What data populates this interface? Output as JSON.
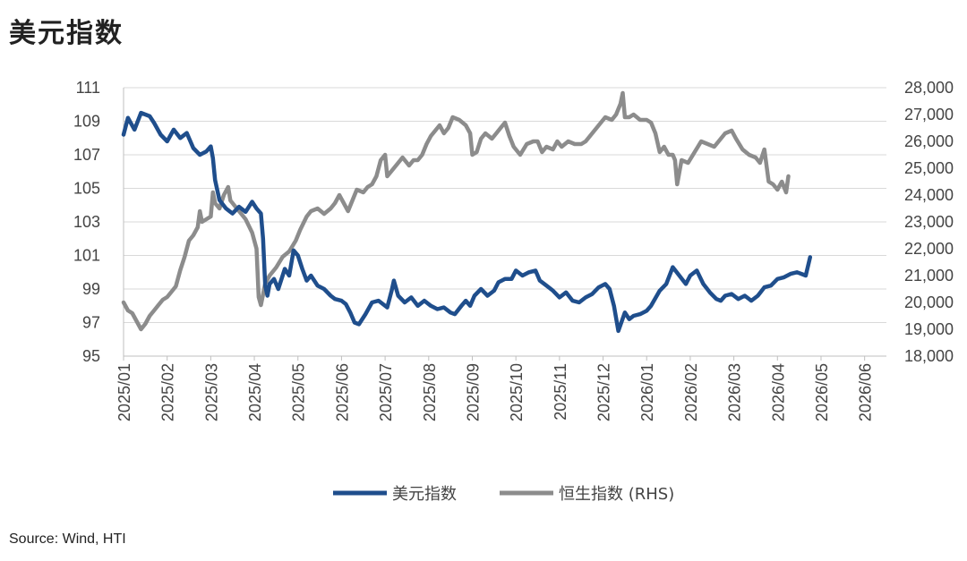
{
  "page": {
    "title": "美元指数",
    "source": "Source: Wind, HTI"
  },
  "colors": {
    "usd": "#1f4e8c",
    "hsi": "#8c8c8c",
    "grid": "#d9d9d9",
    "axis": "#bfbfbf"
  },
  "chart_data": {
    "type": "line",
    "title": "美元指数",
    "x_tick_labels": [
      "2025/01",
      "2025/02",
      "2025/03",
      "2025/04",
      "2025/05",
      "2025/06",
      "2025/07",
      "2025/08",
      "2025/09",
      "2025/10",
      "2025/11",
      "2025/12",
      "2026/01",
      "2026/02",
      "2026/03",
      "2026/04",
      "2026/05",
      "2026/06"
    ],
    "y_left": {
      "min": 95,
      "max": 111,
      "ticks": [
        "95",
        "97",
        "99",
        "101",
        "103",
        "105",
        "107",
        "109",
        "111"
      ]
    },
    "y_right": {
      "min": 18000,
      "max": 28000,
      "ticks": [
        "18,000",
        "19,000",
        "20,000",
        "21,000",
        "22,000",
        "23,000",
        "24,000",
        "25,000",
        "26,000",
        "27,000",
        "28,000"
      ]
    },
    "grid": true,
    "legend_position": "bottom",
    "x_unit": "month index (0 = 2025/01)",
    "series": [
      {
        "name": "美元指数",
        "axis": "left",
        "points": [
          [
            0,
            108.2
          ],
          [
            0.1,
            109.2
          ],
          [
            0.25,
            108.5
          ],
          [
            0.4,
            109.5
          ],
          [
            0.6,
            109.3
          ],
          [
            0.7,
            108.9
          ],
          [
            0.85,
            108.2
          ],
          [
            1.0,
            107.8
          ],
          [
            1.15,
            108.5
          ],
          [
            1.3,
            108.0
          ],
          [
            1.45,
            108.3
          ],
          [
            1.6,
            107.4
          ],
          [
            1.75,
            107.0
          ],
          [
            1.9,
            107.2
          ],
          [
            2.0,
            107.5
          ],
          [
            2.05,
            106.8
          ],
          [
            2.1,
            105.5
          ],
          [
            2.2,
            104.3
          ],
          [
            2.35,
            103.8
          ],
          [
            2.5,
            103.5
          ],
          [
            2.65,
            103.9
          ],
          [
            2.8,
            103.6
          ],
          [
            2.95,
            104.2
          ],
          [
            3.05,
            103.8
          ],
          [
            3.15,
            103.5
          ],
          [
            3.2,
            102.0
          ],
          [
            3.25,
            99.2
          ],
          [
            3.3,
            98.6
          ],
          [
            3.35,
            99.3
          ],
          [
            3.45,
            99.6
          ],
          [
            3.55,
            99.0
          ],
          [
            3.7,
            100.2
          ],
          [
            3.8,
            99.8
          ],
          [
            3.9,
            101.3
          ],
          [
            4.0,
            101.0
          ],
          [
            4.1,
            100.2
          ],
          [
            4.2,
            99.5
          ],
          [
            4.3,
            99.8
          ],
          [
            4.45,
            99.2
          ],
          [
            4.6,
            99.0
          ],
          [
            4.75,
            98.6
          ],
          [
            4.85,
            98.4
          ],
          [
            5.0,
            98.3
          ],
          [
            5.1,
            98.1
          ],
          [
            5.2,
            97.6
          ],
          [
            5.3,
            97.0
          ],
          [
            5.4,
            96.9
          ],
          [
            5.55,
            97.5
          ],
          [
            5.7,
            98.2
          ],
          [
            5.85,
            98.3
          ],
          [
            5.95,
            98.1
          ],
          [
            6.05,
            97.9
          ],
          [
            6.15,
            98.9
          ],
          [
            6.2,
            99.5
          ],
          [
            6.3,
            98.6
          ],
          [
            6.45,
            98.2
          ],
          [
            6.6,
            98.5
          ],
          [
            6.75,
            98.0
          ],
          [
            6.9,
            98.3
          ],
          [
            7.05,
            98.0
          ],
          [
            7.2,
            97.8
          ],
          [
            7.35,
            97.9
          ],
          [
            7.5,
            97.6
          ],
          [
            7.6,
            97.5
          ],
          [
            7.75,
            98.0
          ],
          [
            7.85,
            98.3
          ],
          [
            7.95,
            98.0
          ],
          [
            8.05,
            98.6
          ],
          [
            8.2,
            99.0
          ],
          [
            8.35,
            98.6
          ],
          [
            8.5,
            98.9
          ],
          [
            8.6,
            99.4
          ],
          [
            8.75,
            99.6
          ],
          [
            8.9,
            99.6
          ],
          [
            9.0,
            100.1
          ],
          [
            9.15,
            99.8
          ],
          [
            9.3,
            100.0
          ],
          [
            9.45,
            100.1
          ],
          [
            9.55,
            99.5
          ],
          [
            9.7,
            99.2
          ],
          [
            9.85,
            98.9
          ],
          [
            10.0,
            98.5
          ],
          [
            10.15,
            98.8
          ],
          [
            10.3,
            98.3
          ],
          [
            10.45,
            98.2
          ],
          [
            10.6,
            98.5
          ],
          [
            10.75,
            98.7
          ],
          [
            10.9,
            99.1
          ],
          [
            11.05,
            99.3
          ],
          [
            11.15,
            99.0
          ],
          [
            11.25,
            98.0
          ],
          [
            11.35,
            96.5
          ],
          [
            11.5,
            97.6
          ],
          [
            11.6,
            97.2
          ],
          [
            11.7,
            97.4
          ],
          [
            11.85,
            97.5
          ],
          [
            12.0,
            97.7
          ],
          [
            12.1,
            98.0
          ],
          [
            12.3,
            98.9
          ],
          [
            12.45,
            99.3
          ],
          [
            12.6,
            100.3
          ],
          [
            12.75,
            99.8
          ],
          [
            12.9,
            99.3
          ],
          [
            13.0,
            99.8
          ],
          [
            13.15,
            100.1
          ],
          [
            13.3,
            99.3
          ],
          [
            13.45,
            98.8
          ],
          [
            13.6,
            98.4
          ],
          [
            13.7,
            98.3
          ],
          [
            13.8,
            98.6
          ],
          [
            13.95,
            98.7
          ],
          [
            14.1,
            98.4
          ],
          [
            14.25,
            98.6
          ],
          [
            14.4,
            98.3
          ],
          [
            14.55,
            98.6
          ],
          [
            14.7,
            99.1
          ],
          [
            14.85,
            99.2
          ],
          [
            15.0,
            99.6
          ],
          [
            15.15,
            99.7
          ],
          [
            15.3,
            99.9
          ],
          [
            15.45,
            100.0
          ],
          [
            15.55,
            99.9
          ],
          [
            15.65,
            99.8
          ],
          [
            15.75,
            100.9
          ]
        ]
      },
      {
        "name": "恒生指数 (RHS)",
        "axis": "right",
        "points": [
          [
            0,
            20000
          ],
          [
            0.1,
            19700
          ],
          [
            0.2,
            19600
          ],
          [
            0.3,
            19300
          ],
          [
            0.4,
            19000
          ],
          [
            0.5,
            19200
          ],
          [
            0.6,
            19500
          ],
          [
            0.7,
            19700
          ],
          [
            0.8,
            19900
          ],
          [
            0.9,
            20100
          ],
          [
            1.0,
            20200
          ],
          [
            1.1,
            20400
          ],
          [
            1.2,
            20600
          ],
          [
            1.3,
            21200
          ],
          [
            1.4,
            21700
          ],
          [
            1.5,
            22300
          ],
          [
            1.6,
            22500
          ],
          [
            1.7,
            22800
          ],
          [
            1.75,
            23400
          ],
          [
            1.8,
            23000
          ],
          [
            1.9,
            23100
          ],
          [
            2.0,
            23200
          ],
          [
            2.05,
            24100
          ],
          [
            2.1,
            23700
          ],
          [
            2.2,
            23500
          ],
          [
            2.3,
            24000
          ],
          [
            2.4,
            24300
          ],
          [
            2.45,
            23800
          ],
          [
            2.55,
            23600
          ],
          [
            2.65,
            23400
          ],
          [
            2.8,
            23100
          ],
          [
            2.95,
            22600
          ],
          [
            3.05,
            22000
          ],
          [
            3.1,
            20200
          ],
          [
            3.15,
            19900
          ],
          [
            3.25,
            20700
          ],
          [
            3.35,
            21000
          ],
          [
            3.5,
            21300
          ],
          [
            3.65,
            21700
          ],
          [
            3.8,
            21900
          ],
          [
            3.95,
            22300
          ],
          [
            4.05,
            22700
          ],
          [
            4.2,
            23200
          ],
          [
            4.3,
            23400
          ],
          [
            4.45,
            23500
          ],
          [
            4.6,
            23300
          ],
          [
            4.75,
            23500
          ],
          [
            4.85,
            23700
          ],
          [
            4.95,
            24000
          ],
          [
            5.05,
            23700
          ],
          [
            5.15,
            23400
          ],
          [
            5.25,
            23800
          ],
          [
            5.35,
            24200
          ],
          [
            5.5,
            24100
          ],
          [
            5.6,
            24300
          ],
          [
            5.7,
            24400
          ],
          [
            5.8,
            24700
          ],
          [
            5.9,
            25300
          ],
          [
            6.0,
            25500
          ],
          [
            6.05,
            24700
          ],
          [
            6.15,
            24900
          ],
          [
            6.25,
            25100
          ],
          [
            6.4,
            25400
          ],
          [
            6.55,
            25100
          ],
          [
            6.65,
            25300
          ],
          [
            6.75,
            25300
          ],
          [
            6.85,
            25500
          ],
          [
            6.95,
            25900
          ],
          [
            7.05,
            26200
          ],
          [
            7.15,
            26400
          ],
          [
            7.25,
            26600
          ],
          [
            7.35,
            26300
          ],
          [
            7.45,
            26500
          ],
          [
            7.55,
            26900
          ],
          [
            7.7,
            26800
          ],
          [
            7.85,
            26600
          ],
          [
            7.95,
            26300
          ],
          [
            8.0,
            25500
          ],
          [
            8.1,
            25600
          ],
          [
            8.2,
            26100
          ],
          [
            8.3,
            26300
          ],
          [
            8.45,
            26100
          ],
          [
            8.55,
            26300
          ],
          [
            8.65,
            26500
          ],
          [
            8.75,
            26700
          ],
          [
            8.85,
            26200
          ],
          [
            8.95,
            25800
          ],
          [
            9.1,
            25500
          ],
          [
            9.25,
            25900
          ],
          [
            9.4,
            26000
          ],
          [
            9.5,
            26000
          ],
          [
            9.6,
            25600
          ],
          [
            9.7,
            25800
          ],
          [
            9.85,
            25700
          ],
          [
            9.95,
            26000
          ],
          [
            10.05,
            25800
          ],
          [
            10.2,
            26000
          ],
          [
            10.35,
            25900
          ],
          [
            10.5,
            25900
          ],
          [
            10.6,
            26000
          ],
          [
            10.75,
            26300
          ],
          [
            10.9,
            26600
          ],
          [
            11.05,
            26900
          ],
          [
            11.2,
            26800
          ],
          [
            11.3,
            27000
          ],
          [
            11.4,
            27400
          ],
          [
            11.45,
            27800
          ],
          [
            11.5,
            26900
          ],
          [
            11.6,
            26900
          ],
          [
            11.7,
            27000
          ],
          [
            11.85,
            26800
          ],
          [
            12.0,
            26800
          ],
          [
            12.1,
            26700
          ],
          [
            12.2,
            26300
          ],
          [
            12.3,
            25600
          ],
          [
            12.4,
            25800
          ],
          [
            12.5,
            25500
          ],
          [
            12.6,
            25500
          ],
          [
            12.65,
            25300
          ],
          [
            12.7,
            24400
          ],
          [
            12.8,
            25300
          ],
          [
            12.95,
            25200
          ],
          [
            13.1,
            25600
          ],
          [
            13.25,
            26000
          ],
          [
            13.4,
            25900
          ],
          [
            13.55,
            25800
          ],
          [
            13.65,
            26000
          ],
          [
            13.8,
            26300
          ],
          [
            13.95,
            26400
          ],
          [
            14.05,
            26100
          ],
          [
            14.2,
            25700
          ],
          [
            14.35,
            25500
          ],
          [
            14.5,
            25400
          ],
          [
            14.6,
            25200
          ],
          [
            14.7,
            25700
          ],
          [
            14.8,
            24500
          ],
          [
            14.9,
            24400
          ],
          [
            15.0,
            24200
          ],
          [
            15.1,
            24500
          ],
          [
            15.2,
            24100
          ],
          [
            15.25,
            24700
          ]
        ]
      }
    ]
  }
}
